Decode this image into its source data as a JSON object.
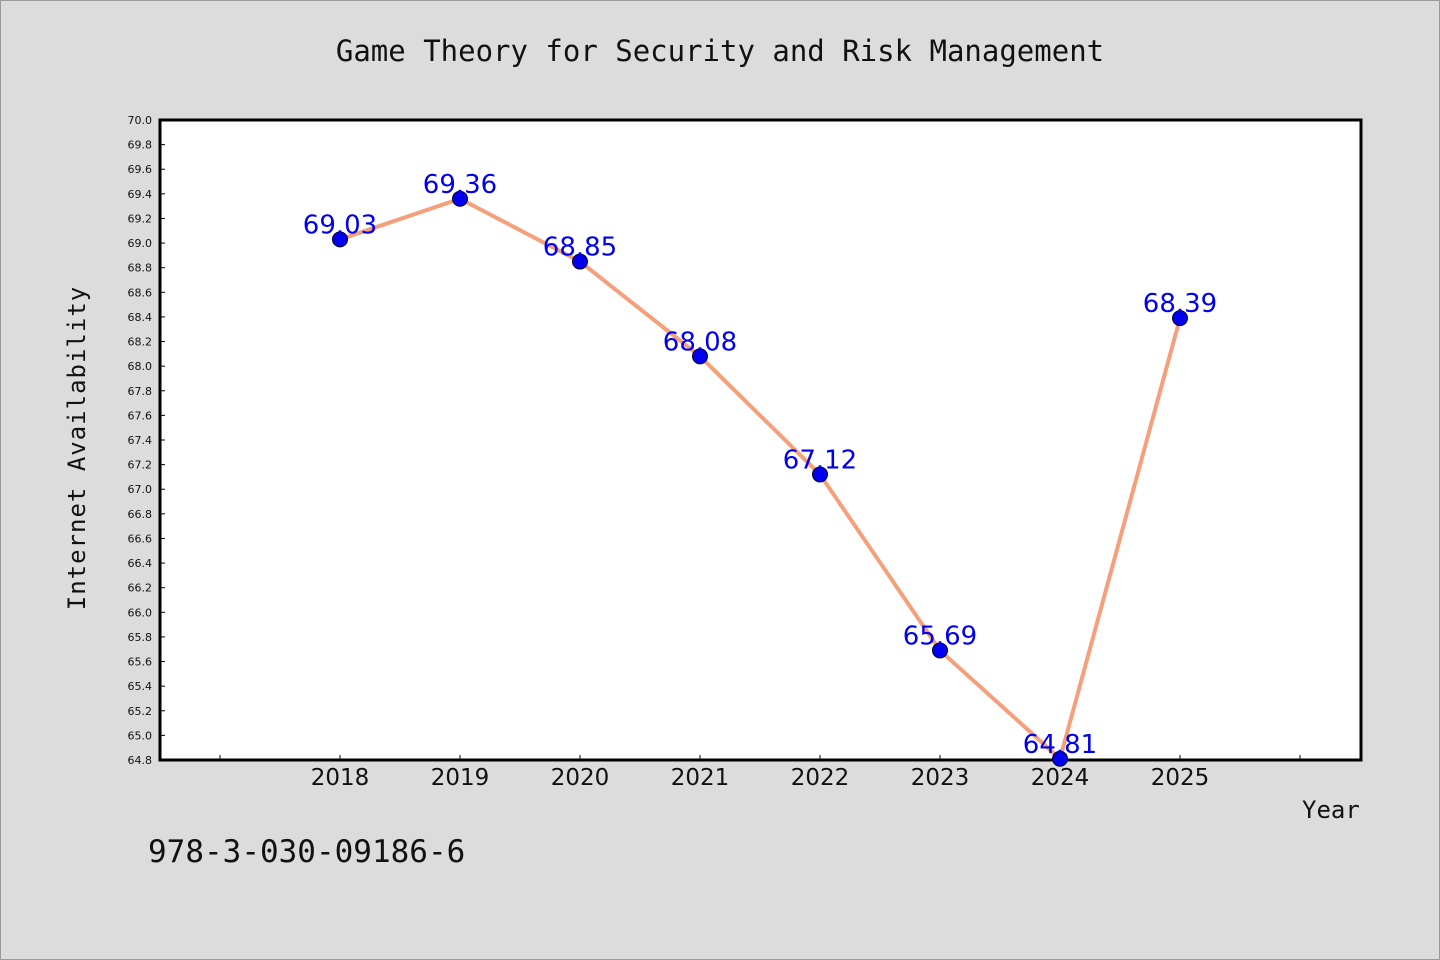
{
  "figure": {
    "title": "Game Theory for Security and Risk Management",
    "footer_text": "978-3-030-09186-6",
    "background": "#dcdcdc"
  },
  "chart_data": {
    "type": "line",
    "title": "Game Theory for Security and Risk Management",
    "xlabel": "Year",
    "ylabel": "Internet Availability",
    "categories": [
      "2018",
      "2019",
      "2020",
      "2021",
      "2022",
      "2023",
      "2024",
      "2025"
    ],
    "series": [
      {
        "values": [
          69.03,
          69.36,
          68.85,
          68.08,
          67.12,
          65.69,
          64.81,
          68.39
        ],
        "line_color": "#f5a07a",
        "marker_color": "#0000ee",
        "label_color": "#0000ee"
      }
    ],
    "data_labels": [
      "69.03",
      "69.36",
      "68.85",
      "68.08",
      "67.12",
      "65.69",
      "64.81",
      "68.39"
    ],
    "ylim": [
      64.8,
      70.0
    ],
    "y_ticks": [
      "64.8",
      "65.0",
      "65.2",
      "65.4",
      "65.6",
      "65.8",
      "66.0",
      "66.2",
      "66.4",
      "66.6",
      "66.8",
      "67.0",
      "67.2",
      "67.4",
      "67.6",
      "67.8",
      "68.0",
      "68.2",
      "68.4",
      "68.6",
      "68.8",
      "69.0",
      "69.2",
      "69.4",
      "69.6",
      "69.8",
      "70.0"
    ],
    "x_category_start_index": 2,
    "grid": false,
    "legend": "none"
  }
}
